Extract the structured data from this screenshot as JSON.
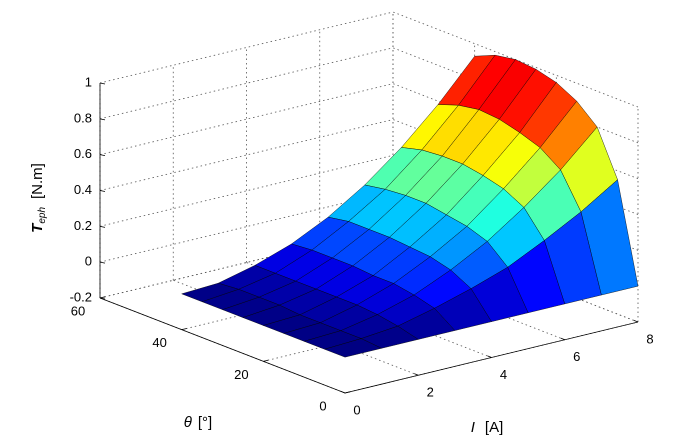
{
  "chart_data": {
    "type": "surface",
    "xlabel": {
      "symbol": "I",
      "unit": "[A]"
    },
    "ylabel": {
      "symbol": "θ",
      "unit": "[°]"
    },
    "zlabel": {
      "symbol": "T",
      "subscript": "eph",
      "unit": "[N.m]"
    },
    "x": [
      0,
      1,
      2,
      3,
      4,
      5,
      6,
      7,
      8
    ],
    "y": [
      0,
      5,
      10,
      15,
      20,
      25,
      30,
      35,
      40
    ],
    "z": [
      [
        0,
        0,
        0,
        0,
        0,
        0,
        0,
        0,
        0
      ],
      [
        0,
        0.01,
        0.03,
        0.08,
        0.14,
        0.21,
        0.31,
        0.42,
        0.55
      ],
      [
        0,
        0.01,
        0.05,
        0.11,
        0.2,
        0.31,
        0.45,
        0.61,
        0.8
      ],
      [
        0,
        0.01,
        0.06,
        0.13,
        0.23,
        0.35,
        0.51,
        0.69,
        0.9
      ],
      [
        0,
        0.01,
        0.06,
        0.13,
        0.24,
        0.37,
        0.54,
        0.73,
        0.96
      ],
      [
        0,
        0.02,
        0.06,
        0.14,
        0.25,
        0.39,
        0.56,
        0.76,
        0.99
      ],
      [
        0,
        0.02,
        0.06,
        0.14,
        0.25,
        0.39,
        0.56,
        0.77,
        1
      ],
      [
        0,
        0.02,
        0.06,
        0.14,
        0.25,
        0.38,
        0.55,
        0.75,
        0.98
      ],
      [
        0,
        0.01,
        0.06,
        0.13,
        0.23,
        0.36,
        0.52,
        0.71,
        0.93
      ]
    ],
    "xlim": [
      0,
      8
    ],
    "xticks": [
      0,
      2,
      4,
      6,
      8
    ],
    "ylim": [
      0,
      60
    ],
    "yticks": [
      0,
      20,
      40,
      60
    ],
    "zlim": [
      -0.2,
      1
    ],
    "zticks": [
      -0.2,
      0,
      0.2,
      0.4,
      0.6,
      0.8,
      1
    ],
    "colormap": "jet",
    "grid": true
  }
}
